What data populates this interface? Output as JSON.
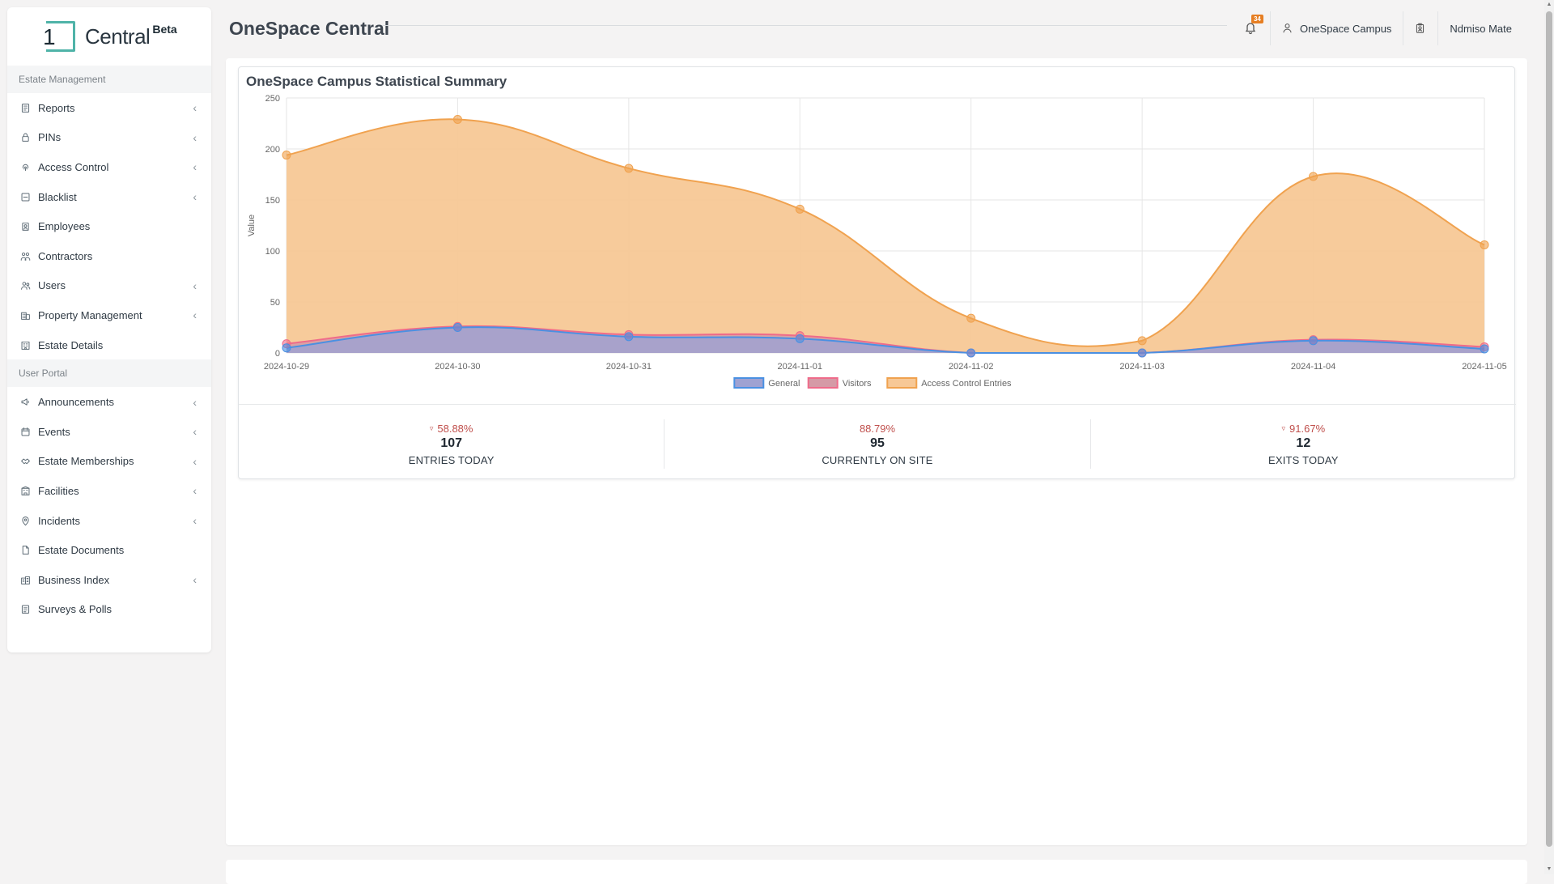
{
  "app": {
    "logo_text": "Central",
    "logo_badge": "Beta",
    "logo_digit": "1",
    "page_title": "OneSpace Central"
  },
  "header": {
    "notifications_count": "34",
    "estate_name": "OneSpace Campus",
    "user_name": "Ndmiso Mate"
  },
  "sidebar": {
    "sections": [
      {
        "label": "Estate Management",
        "items": [
          {
            "label": "Reports",
            "icon": "report-icon",
            "expandable": true
          },
          {
            "label": "PINs",
            "icon": "lock-icon",
            "expandable": true
          },
          {
            "label": "Access Control",
            "icon": "fingerprint-icon",
            "expandable": true
          },
          {
            "label": "Blacklist",
            "icon": "blacklist-icon",
            "expandable": true
          },
          {
            "label": "Employees",
            "icon": "id-badge-icon",
            "expandable": false
          },
          {
            "label": "Contractors",
            "icon": "worker-icon",
            "expandable": false
          },
          {
            "label": "Users",
            "icon": "users-icon",
            "expandable": true
          },
          {
            "label": "Property Management",
            "icon": "building-icon",
            "expandable": true
          },
          {
            "label": "Estate Details",
            "icon": "estate-icon",
            "expandable": false
          }
        ]
      },
      {
        "label": "User Portal",
        "items": [
          {
            "label": "Announcements",
            "icon": "megaphone-icon",
            "expandable": true
          },
          {
            "label": "Events",
            "icon": "calendar-icon",
            "expandable": true
          },
          {
            "label": "Estate Memberships",
            "icon": "handshake-icon",
            "expandable": true
          },
          {
            "label": "Facilities",
            "icon": "facility-icon",
            "expandable": true
          },
          {
            "label": "Incidents",
            "icon": "pin-icon",
            "expandable": true
          },
          {
            "label": "Estate Documents",
            "icon": "document-icon",
            "expandable": false
          },
          {
            "label": "Business Index",
            "icon": "business-icon",
            "expandable": true
          },
          {
            "label": "Surveys & Polls",
            "icon": "survey-icon",
            "expandable": false
          }
        ]
      }
    ]
  },
  "stats_card": {
    "title": "OneSpace Campus Statistical Summary",
    "stats": [
      {
        "pct": "58.88%",
        "value": "107",
        "label": "ENTRIES TODAY",
        "down": true
      },
      {
        "pct": "88.79%",
        "value": "95",
        "label": "CURRENTLY ON SITE",
        "down": false
      },
      {
        "pct": "91.67%",
        "value": "12",
        "label": "EXITS TODAY",
        "down": true
      }
    ]
  },
  "chart_data": {
    "type": "area",
    "title": "",
    "xlabel": "",
    "ylabel": "Value",
    "x": [
      "2024-10-29",
      "2024-10-30",
      "2024-10-31",
      "2024-11-01",
      "2024-11-02",
      "2024-11-03",
      "2024-11-04",
      "2024-11-05"
    ],
    "ylim": [
      0,
      250
    ],
    "yticks": [
      0,
      50,
      100,
      150,
      200,
      250
    ],
    "grid": true,
    "legend_position": "bottom",
    "series": [
      {
        "name": "General",
        "color": "#4a90e2",
        "fill": "#9fa2d2",
        "values": [
          5,
          25,
          16,
          14,
          0,
          0,
          12,
          4
        ]
      },
      {
        "name": "Visitors",
        "color": "#ef6b8a",
        "fill": "#d59aa6",
        "values": [
          9,
          26,
          18,
          17,
          0,
          0,
          13,
          6
        ]
      },
      {
        "name": "Access Control Entries",
        "color": "#f0a24f",
        "fill": "#f7c896",
        "values": [
          194,
          229,
          181,
          141,
          34,
          12,
          173,
          106
        ]
      }
    ]
  },
  "colors": {
    "accent": "#4fb3a8",
    "badge": "#e67e22",
    "negative": "#c0504d"
  }
}
